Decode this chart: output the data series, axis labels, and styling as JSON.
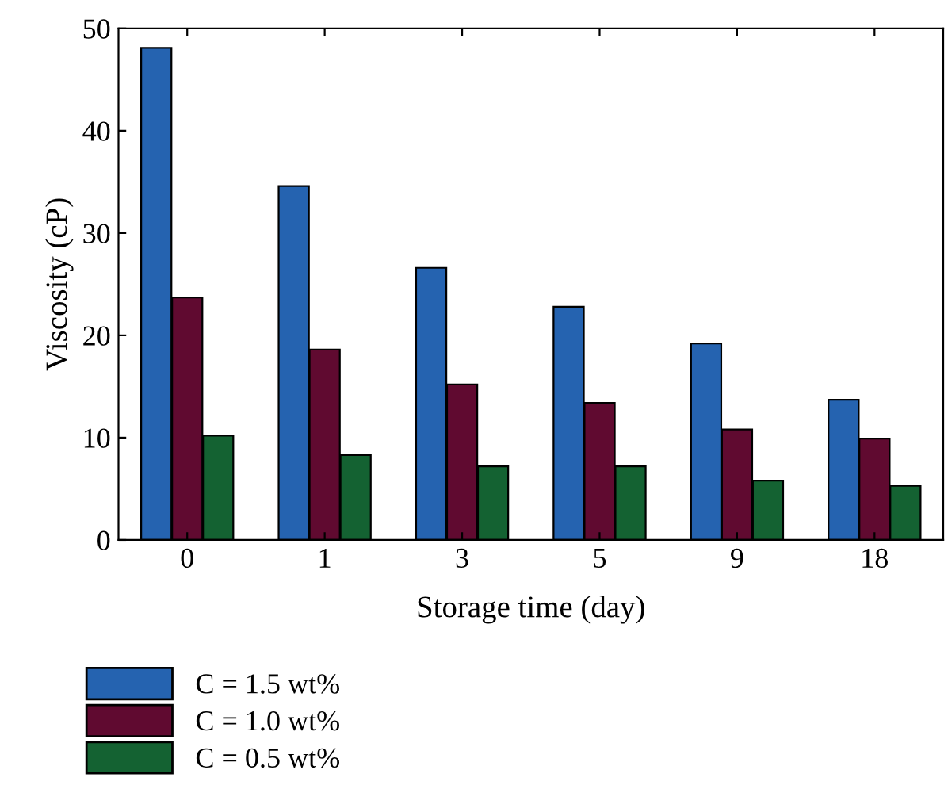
{
  "chart_data": {
    "type": "bar",
    "xlabel": "Storage time (day)",
    "ylabel": "Viscosity (cP)",
    "categories": [
      "0",
      "1",
      "3",
      "5",
      "9",
      "18"
    ],
    "series": [
      {
        "name": "C = 1.5 wt%",
        "color": "#2563b0",
        "values": [
          48.1,
          34.6,
          26.6,
          22.8,
          19.2,
          13.7
        ]
      },
      {
        "name": "C = 1.0 wt%",
        "color": "#600a30",
        "values": [
          23.7,
          18.6,
          15.2,
          13.4,
          10.8,
          9.9
        ]
      },
      {
        "name": "C = 0.5 wt%",
        "color": "#146232",
        "values": [
          10.2,
          8.3,
          7.2,
          7.2,
          5.8,
          5.3
        ]
      }
    ],
    "ylim": [
      0,
      50
    ],
    "yticks": [
      0,
      10,
      20,
      30,
      40,
      50
    ],
    "grid": false,
    "legend": "bottom left"
  }
}
